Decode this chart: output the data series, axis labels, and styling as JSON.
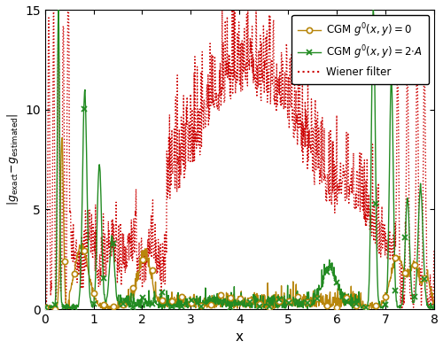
{
  "title": "",
  "xlabel": "x",
  "xlim": [
    0,
    8
  ],
  "ylim": [
    0,
    15
  ],
  "yticks": [
    0,
    5,
    10,
    15
  ],
  "xticks": [
    0,
    1,
    2,
    3,
    4,
    5,
    6,
    7,
    8
  ],
  "cgm0_color": "#B8860B",
  "cgm2A_color": "#228B22",
  "wiener_color": "#CC0000",
  "legend_labels": [
    "CGM $g^0(x,y)=0$",
    "CGM $g^0(x,y)=2{\\cdot}A$",
    "Wiener filter"
  ],
  "figsize": [
    5.0,
    3.94
  ],
  "dpi": 100
}
